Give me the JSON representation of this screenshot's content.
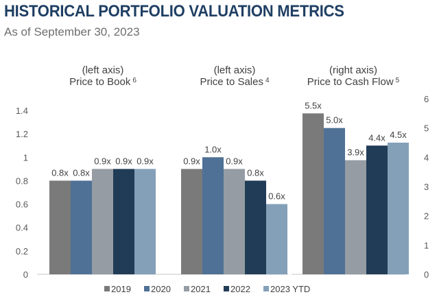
{
  "header": {
    "title": "HISTORICAL PORTFOLIO VALUATION METRICS",
    "subtitle": "As of September 30, 2023"
  },
  "chart_data": {
    "type": "bar",
    "title": "HISTORICAL PORTFOLIO VALUATION METRICS",
    "subtitle": "As of September 30, 2023",
    "series_names": [
      "2019",
      "2020",
      "2021",
      "2022",
      "2023 YTD"
    ],
    "colors": [
      "#7a7a7a",
      "#4f7195",
      "#959ca3",
      "#213c57",
      "#84a0b9"
    ],
    "left_axis": {
      "ticks": [
        "0",
        "0.2",
        "0.4",
        "0.6",
        "0.8",
        "1",
        "1.2",
        "1.4"
      ],
      "range": [
        0,
        1.4
      ]
    },
    "right_axis": {
      "ticks": [
        "0",
        "1",
        "2",
        "3",
        "4",
        "5",
        "6"
      ],
      "range": [
        0,
        6
      ]
    },
    "groups": [
      {
        "axis_note": "(left axis)",
        "name": "Price to Book",
        "footnote": "6",
        "axis": "left",
        "values": [
          0.8,
          0.8,
          0.9,
          0.9,
          0.9
        ],
        "labels": [
          "0.8x",
          "0.8x",
          "0.9x",
          "0.9x",
          "0.9x"
        ]
      },
      {
        "axis_note": "(left axis)",
        "name": "Price to Sales",
        "footnote": "4",
        "axis": "left",
        "values": [
          0.9,
          1.0,
          0.9,
          0.8,
          0.6
        ],
        "labels": [
          "0.9x",
          "1.0x",
          "0.9x",
          "0.8x",
          "0.6x"
        ]
      },
      {
        "axis_note": "(right axis)",
        "name": "Price to Cash Flow",
        "footnote": "5",
        "axis": "right",
        "values": [
          5.5,
          5.0,
          3.9,
          4.4,
          4.5
        ],
        "labels": [
          "5.5x",
          "5.0x",
          "3.9x",
          "4.4x",
          "4.5x"
        ]
      }
    ],
    "legend_position": "bottom",
    "grid": false
  }
}
